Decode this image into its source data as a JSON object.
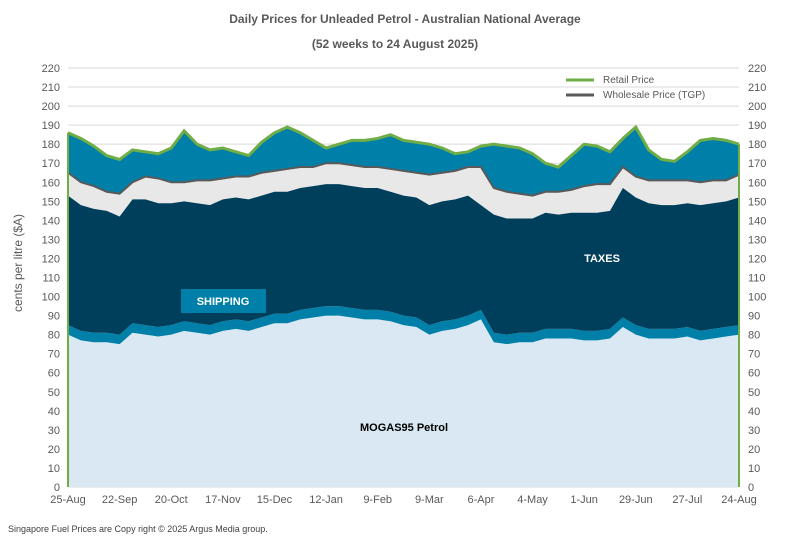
{
  "chart_data": {
    "type": "area",
    "title": "Daily  Prices for Unleaded  Petrol  - Australian  National  Average",
    "subtitle": "(52 weeks to 24 August  2025)",
    "ylabel": "cents per litre ($A)",
    "xlabel": "",
    "ylim": [
      0,
      220
    ],
    "yticks": [
      0,
      10,
      20,
      30,
      40,
      50,
      60,
      70,
      80,
      90,
      100,
      110,
      120,
      130,
      140,
      150,
      160,
      170,
      180,
      190,
      200,
      210,
      220
    ],
    "xticks": [
      "25-Aug",
      "22-Sep",
      "20-Oct",
      "17-Nov",
      "15-Dec",
      "12-Jan",
      "9-Feb",
      "9-Mar",
      "6-Apr",
      "4-May",
      "1-Jun",
      "29-Jun",
      "27-Jul",
      "24-Aug"
    ],
    "grid": true,
    "legend_position": "top-right",
    "x": [
      "25-Aug",
      "1-Sep",
      "8-Sep",
      "15-Sep",
      "22-Sep",
      "29-Sep",
      "6-Oct",
      "13-Oct",
      "20-Oct",
      "27-Oct",
      "3-Nov",
      "10-Nov",
      "17-Nov",
      "24-Nov",
      "1-Dec",
      "8-Dec",
      "15-Dec",
      "22-Dec",
      "29-Dec",
      "5-Jan",
      "12-Jan",
      "19-Jan",
      "26-Jan",
      "2-Feb",
      "9-Feb",
      "16-Feb",
      "23-Feb",
      "2-Mar",
      "9-Mar",
      "16-Mar",
      "23-Mar",
      "30-Mar",
      "6-Apr",
      "13-Apr",
      "20-Apr",
      "27-Apr",
      "4-May",
      "11-May",
      "18-May",
      "25-May",
      "1-Jun",
      "8-Jun",
      "15-Jun",
      "22-Jun",
      "29-Jun",
      "6-Jul",
      "13-Jul",
      "20-Jul",
      "27-Jul",
      "3-Aug",
      "10-Aug",
      "17-Aug",
      "24-Aug"
    ],
    "series": [
      {
        "name": "MOGAS95 Petrol",
        "color": "#d9e8f2",
        "values": [
          80,
          77,
          76,
          76,
          75,
          81,
          80,
          79,
          80,
          82,
          81,
          80,
          82,
          83,
          82,
          84,
          86,
          86,
          88,
          89,
          90,
          90,
          89,
          88,
          88,
          87,
          85,
          84,
          80,
          82,
          83,
          85,
          88,
          76,
          75,
          76,
          76,
          78,
          78,
          78,
          77,
          77,
          78,
          84,
          80,
          78,
          78,
          78,
          79,
          77,
          78,
          79,
          80
        ]
      },
      {
        "name": "SHIPPING",
        "color": "#0080a8",
        "values": [
          5,
          5,
          5,
          5,
          5,
          5,
          5,
          5,
          5,
          5,
          5,
          5,
          5,
          5,
          5,
          5,
          5,
          5,
          5,
          5,
          5,
          5,
          5,
          5,
          5,
          5,
          5,
          5,
          5,
          5,
          5,
          5,
          5,
          5,
          5,
          5,
          5,
          5,
          5,
          5,
          5,
          5,
          5,
          5,
          5,
          5,
          5,
          5,
          5,
          5,
          5,
          5,
          5
        ]
      },
      {
        "name": "TAXES",
        "color": "#003f5c",
        "values": [
          68,
          66,
          65,
          64,
          62,
          65,
          66,
          65,
          64,
          63,
          63,
          63,
          64,
          64,
          64,
          64,
          64,
          64,
          64,
          64,
          64,
          64,
          64,
          64,
          64,
          63,
          63,
          63,
          63,
          63,
          63,
          63,
          55,
          62,
          61,
          60,
          60,
          61,
          60,
          61,
          62,
          62,
          62,
          68,
          67,
          66,
          65,
          65,
          65,
          66,
          66,
          66,
          67
        ]
      },
      {
        "name": "Wholesale Price (TGP)",
        "color": "#595959",
        "values": [
          165,
          160,
          158,
          155,
          154,
          160,
          163,
          162,
          160,
          160,
          161,
          161,
          162,
          163,
          163,
          165,
          166,
          167,
          168,
          168,
          170,
          170,
          169,
          168,
          168,
          167,
          166,
          165,
          164,
          165,
          166,
          168,
          168,
          157,
          155,
          154,
          153,
          155,
          155,
          156,
          158,
          159,
          159,
          168,
          163,
          161,
          161,
          161,
          161,
          160,
          161,
          161,
          164
        ]
      },
      {
        "name": "Retail Price",
        "color": "#70ad47",
        "values": [
          186,
          183,
          179,
          174,
          172,
          177,
          176,
          175,
          178,
          187,
          180,
          177,
          178,
          176,
          174,
          181,
          186,
          189,
          186,
          182,
          178,
          180,
          182,
          182,
          183,
          185,
          182,
          181,
          180,
          178,
          175,
          176,
          179,
          180,
          179,
          178,
          175,
          170,
          168,
          174,
          180,
          179,
          176,
          183,
          189,
          177,
          172,
          171,
          176,
          182,
          183,
          182,
          180
        ]
      }
    ],
    "annotations": [
      "SHIPPING",
      "TAXES",
      "MOGAS95 Petrol"
    ]
  },
  "legend": {
    "retail": {
      "label": "Retail Price",
      "color": "#70ad47"
    },
    "wholesale": {
      "label": "Wholesale Price (TGP)",
      "color": "#595959"
    }
  },
  "footer": "Singapore  Fuel Prices are  Copy right © 2025 Argus Media  group."
}
